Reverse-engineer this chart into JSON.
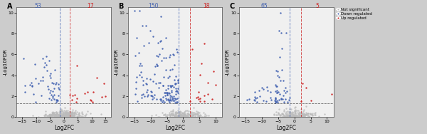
{
  "panels": [
    {
      "label": "A",
      "blue_count": "53",
      "red_count": "17",
      "blue_vline": -1.5,
      "red_vline": 2.0,
      "xlim": [
        -17,
        17
      ],
      "ylim": [
        0,
        10.5
      ],
      "xticks": [
        -15,
        -10,
        -5,
        0,
        5,
        10,
        15
      ],
      "yticks": [
        0,
        2,
        4,
        6,
        8,
        10
      ]
    },
    {
      "label": "B",
      "blue_count": "150",
      "red_count": "18",
      "blue_vline": -1.5,
      "red_vline": 2.0,
      "xlim": [
        -17,
        12
      ],
      "ylim": [
        0,
        10.5
      ],
      "xticks": [
        -15,
        -10,
        -5,
        0,
        5,
        10
      ],
      "yticks": [
        0,
        2,
        4,
        6,
        8,
        10
      ]
    },
    {
      "label": "C",
      "blue_count": "65",
      "red_count": "5",
      "blue_vline": -1.5,
      "red_vline": 2.0,
      "xlim": [
        -17,
        12
      ],
      "ylim": [
        0,
        10.5
      ],
      "xticks": [
        -15,
        -10,
        -5,
        0,
        5,
        10
      ],
      "yticks": [
        0,
        2,
        4,
        6,
        8,
        10
      ]
    }
  ],
  "dot_size": 3,
  "gray_color": "#bbbbbb",
  "blue_color": "#4060b0",
  "red_color": "#cc2020",
  "blue_label_color": "#4060b0",
  "red_label_color": "#cc2020",
  "hline_y": 1.3,
  "xlabel": "Log2FC",
  "ylabel": "-Log10FDR",
  "legend_labels": [
    "Not significant",
    "Down regulated",
    "Up regulated"
  ],
  "legend_colors": [
    "#bbbbbb",
    "#4060b0",
    "#cc2020"
  ],
  "fig_bg": "#cccccc",
  "panel_bg": "#f0f0f0"
}
